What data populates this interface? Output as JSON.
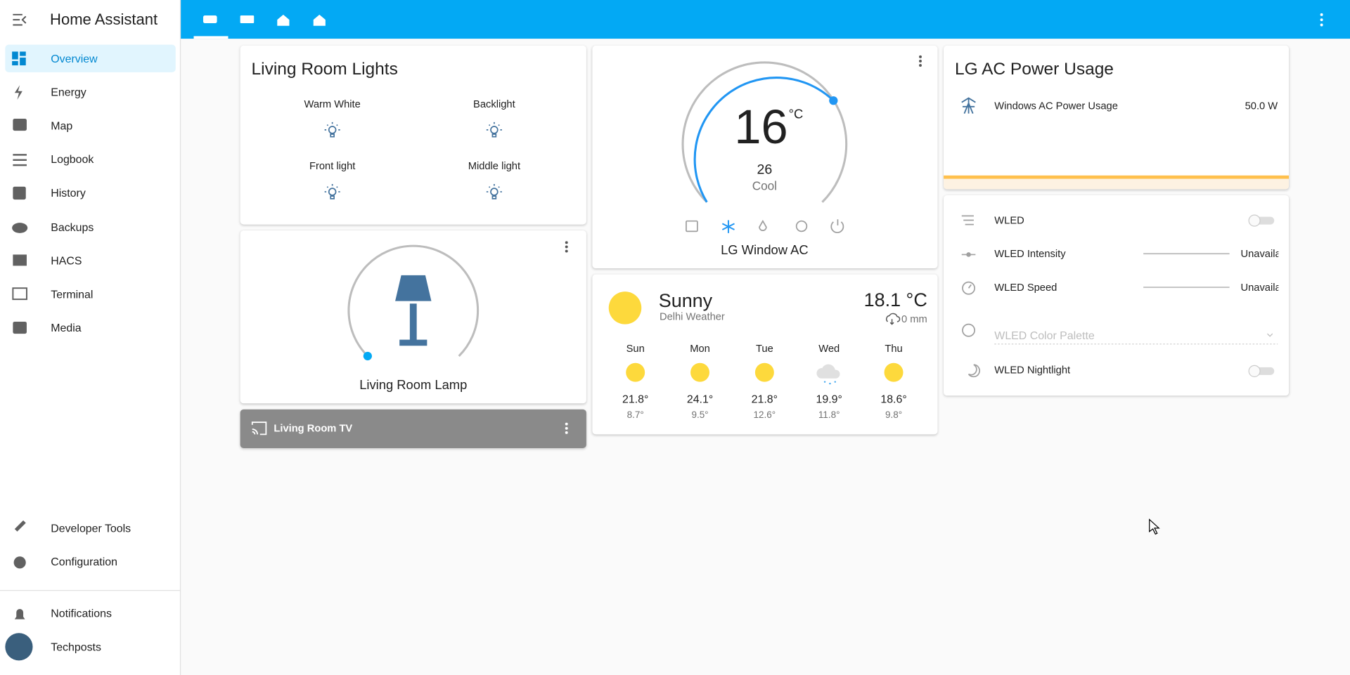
{
  "sidebar": {
    "title": "Home Assistant",
    "items": [
      "Overview",
      "Energy",
      "Map",
      "Logbook",
      "History",
      "Backups",
      "HACS",
      "Terminal",
      "Media"
    ],
    "bottom_items": [
      "Developer Tools",
      "Configuration"
    ],
    "notifications": "Notifications",
    "user": "Techposts"
  },
  "lights": {
    "title": "Living Room Lights",
    "buttons": [
      "Warm White",
      "Backlight",
      "Front light",
      "Middle light"
    ]
  },
  "lamp": {
    "name": "Living Room Lamp"
  },
  "tv": {
    "name": "Living Room TV"
  },
  "thermostat": {
    "target": "16",
    "unit": "°C",
    "current": "26",
    "mode": "Cool",
    "name": "LG Window AC"
  },
  "weather": {
    "condition": "Sunny",
    "name": "Delhi Weather",
    "temperature": "18.1 °C",
    "precipitation": "0 mm",
    "forecast": [
      {
        "day": "Sun",
        "high": "21.8°",
        "low": "8.7°"
      },
      {
        "day": "Mon",
        "high": "24.1°",
        "low": "9.5°"
      },
      {
        "day": "Tue",
        "high": "21.8°",
        "low": "12.6°"
      },
      {
        "day": "Wed",
        "high": "19.9°",
        "low": "11.8°"
      },
      {
        "day": "Thu",
        "high": "18.6°",
        "low": "9.8°"
      }
    ]
  },
  "power": {
    "title": "LG AC Power Usage",
    "entity": "Windows AC Power Usage",
    "value": "50.0 W"
  },
  "wled": {
    "entities": [
      {
        "name": "WLED"
      },
      {
        "name": "WLED Intensity",
        "state": "Unavailable"
      },
      {
        "name": "WLED Speed",
        "state": "Unavailable"
      },
      {
        "name": "WLED Color Palette"
      },
      {
        "name": "WLED Nightlight"
      }
    ]
  }
}
